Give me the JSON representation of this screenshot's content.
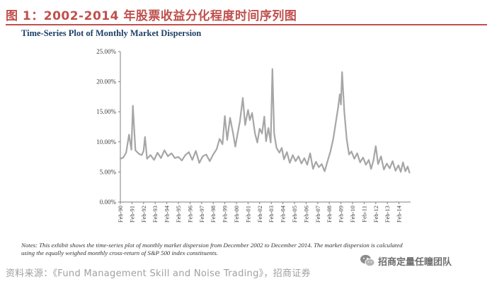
{
  "figure": {
    "title": "图 1：2002-2014 年股票收益分化程度时间序列图",
    "accent_color": "#c0504d"
  },
  "chart_data": {
    "type": "line",
    "title": "Time-Series Plot of Monthly Market Dispersion",
    "xlabel": "",
    "ylabel": "",
    "ylim": [
      0,
      25
    ],
    "y_ticks": [
      "0.00%",
      "5.00%",
      "10.00%",
      "15.00%",
      "20.00%",
      "25.00%"
    ],
    "x_ticks": [
      "Feb-90",
      "Feb-91",
      "Feb-92",
      "Feb-93",
      "Feb-94",
      "Feb-95",
      "Feb-96",
      "Feb-97",
      "Feb-98",
      "Feb-99",
      "Feb-00",
      "Feb-01",
      "Feb-02",
      "Feb-03",
      "Feb-04",
      "Feb-05",
      "Feb-06",
      "Feb-07",
      "Feb-08",
      "Feb-09",
      "Feb-10",
      "Feb-11",
      "Feb-12",
      "Feb-13",
      "Feb-14"
    ],
    "line_color": "#a6a6a6",
    "grid": false,
    "series": [
      {
        "name": "Monthly Market Dispersion",
        "points": [
          [
            1990.0,
            7.2
          ],
          [
            1990.25,
            7.4
          ],
          [
            1990.5,
            8.2
          ],
          [
            1990.75,
            11.2
          ],
          [
            1990.95,
            8.7
          ],
          [
            1991.08,
            16.0
          ],
          [
            1991.3,
            8.6
          ],
          [
            1991.6,
            8.0
          ],
          [
            1991.85,
            7.8
          ],
          [
            1992.0,
            8.5
          ],
          [
            1992.12,
            10.8
          ],
          [
            1992.3,
            7.2
          ],
          [
            1992.6,
            7.8
          ],
          [
            1992.9,
            7.0
          ],
          [
            1993.2,
            8.2
          ],
          [
            1993.5,
            7.3
          ],
          [
            1993.8,
            8.6
          ],
          [
            1994.1,
            7.6
          ],
          [
            1994.4,
            8.1
          ],
          [
            1994.7,
            7.3
          ],
          [
            1995.0,
            7.5
          ],
          [
            1995.3,
            6.9
          ],
          [
            1995.6,
            7.8
          ],
          [
            1995.9,
            8.3
          ],
          [
            1996.2,
            7.0
          ],
          [
            1996.5,
            8.5
          ],
          [
            1996.8,
            6.5
          ],
          [
            1997.1,
            7.6
          ],
          [
            1997.4,
            7.9
          ],
          [
            1997.7,
            6.8
          ],
          [
            1998.0,
            7.9
          ],
          [
            1998.3,
            8.8
          ],
          [
            1998.55,
            10.5
          ],
          [
            1998.8,
            9.6
          ],
          [
            1999.0,
            14.3
          ],
          [
            1999.2,
            10.3
          ],
          [
            1999.45,
            14.0
          ],
          [
            1999.7,
            11.5
          ],
          [
            1999.9,
            9.2
          ],
          [
            2000.05,
            10.8
          ],
          [
            2000.3,
            13.4
          ],
          [
            2000.55,
            17.3
          ],
          [
            2000.75,
            12.8
          ],
          [
            2001.0,
            15.3
          ],
          [
            2001.15,
            13.6
          ],
          [
            2001.35,
            14.8
          ],
          [
            2001.6,
            11.4
          ],
          [
            2001.8,
            9.9
          ],
          [
            2002.0,
            12.2
          ],
          [
            2002.2,
            11.4
          ],
          [
            2002.4,
            14.2
          ],
          [
            2002.55,
            10.1
          ],
          [
            2002.75,
            12.3
          ],
          [
            2002.95,
            9.9
          ],
          [
            2003.1,
            22.1
          ],
          [
            2003.25,
            11.4
          ],
          [
            2003.45,
            9.0
          ],
          [
            2003.7,
            8.2
          ],
          [
            2003.9,
            9.0
          ],
          [
            2004.1,
            7.1
          ],
          [
            2004.35,
            8.3
          ],
          [
            2004.6,
            6.5
          ],
          [
            2004.85,
            7.8
          ],
          [
            2005.1,
            6.8
          ],
          [
            2005.35,
            7.6
          ],
          [
            2005.6,
            6.4
          ],
          [
            2005.85,
            7.3
          ],
          [
            2006.1,
            6.2
          ],
          [
            2006.35,
            8.1
          ],
          [
            2006.6,
            5.5
          ],
          [
            2006.85,
            6.7
          ],
          [
            2007.1,
            5.8
          ],
          [
            2007.35,
            6.3
          ],
          [
            2007.6,
            5.1
          ],
          [
            2007.85,
            6.8
          ],
          [
            2008.1,
            8.4
          ],
          [
            2008.35,
            10.6
          ],
          [
            2008.55,
            13.1
          ],
          [
            2008.75,
            15.6
          ],
          [
            2008.9,
            17.9
          ],
          [
            2009.0,
            16.2
          ],
          [
            2009.1,
            21.6
          ],
          [
            2009.3,
            14.8
          ],
          [
            2009.5,
            10.4
          ],
          [
            2009.7,
            7.9
          ],
          [
            2009.9,
            8.4
          ],
          [
            2010.15,
            7.2
          ],
          [
            2010.4,
            8.1
          ],
          [
            2010.65,
            6.6
          ],
          [
            2010.9,
            7.4
          ],
          [
            2011.15,
            6.2
          ],
          [
            2011.4,
            7.0
          ],
          [
            2011.6,
            5.5
          ],
          [
            2011.8,
            6.9
          ],
          [
            2012.0,
            9.3
          ],
          [
            2012.2,
            6.3
          ],
          [
            2012.45,
            7.6
          ],
          [
            2012.7,
            5.4
          ],
          [
            2012.95,
            6.4
          ],
          [
            2013.2,
            5.6
          ],
          [
            2013.45,
            6.8
          ],
          [
            2013.7,
            5.2
          ],
          [
            2013.95,
            6.1
          ],
          [
            2014.15,
            5.0
          ],
          [
            2014.35,
            6.6
          ],
          [
            2014.55,
            5.1
          ],
          [
            2014.75,
            5.9
          ],
          [
            2014.9,
            4.9
          ]
        ]
      }
    ]
  },
  "notes": {
    "line1": "Notes: This exhibit shows the time-series plot of monthly market dispersion from December 2002 to December 2014. The market dispersion is calculated",
    "line2": "using the equally weighed monthly cross-return of S&P 500 index constituents."
  },
  "source": "资料来源：《Fund Management Skill and Noise Trading》，招商证券",
  "watermark": {
    "text": "招商定量任瞳团队",
    "icon": "wechat-icon"
  }
}
